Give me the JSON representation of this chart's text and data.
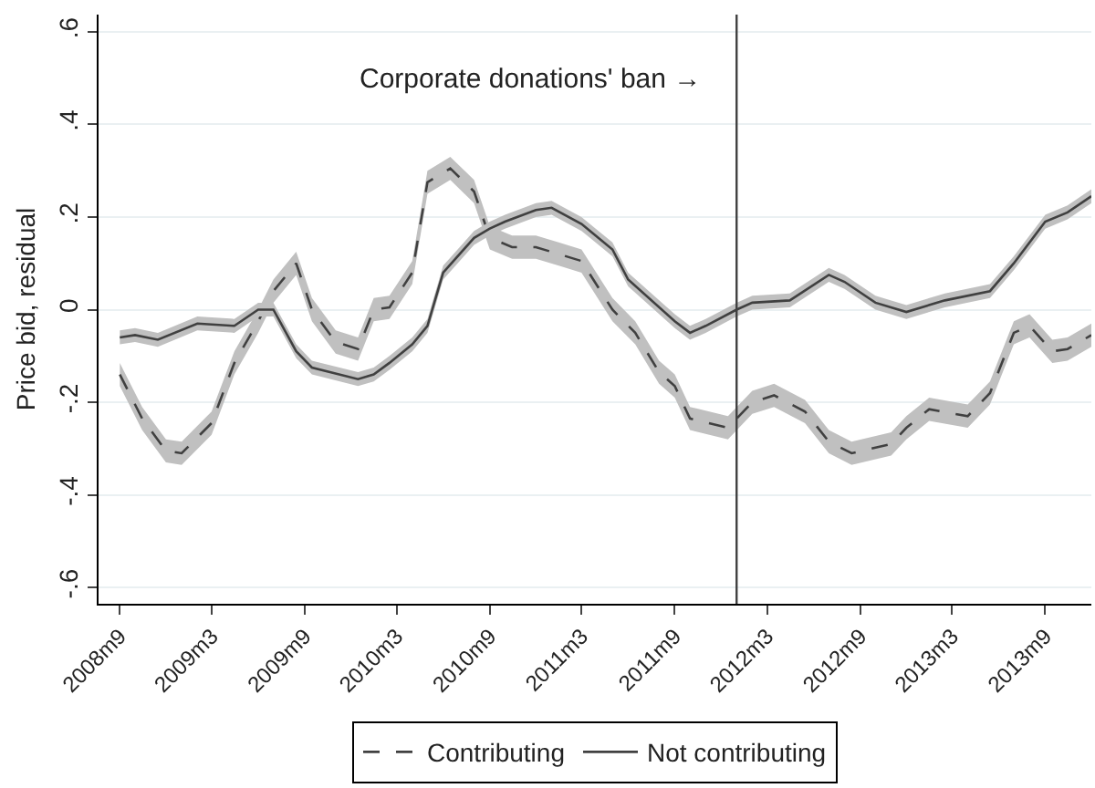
{
  "chart_data": {
    "type": "line",
    "ylabel": "Price bid, residual",
    "annotations": [
      "Corporate donations' ban →"
    ],
    "xlim": [
      "2008-07-21",
      "2013-12-01"
    ],
    "xticks": [
      {
        "value": "2008-09",
        "label": "2008m9"
      },
      {
        "value": "2009-03",
        "label": "2009m3"
      },
      {
        "value": "2009-09",
        "label": "2009m9"
      },
      {
        "value": "2010-03",
        "label": "2010m3"
      },
      {
        "value": "2010-09",
        "label": "2010m9"
      },
      {
        "value": "2011-03",
        "label": "2011m3"
      },
      {
        "value": "2011-09",
        "label": "2011m9"
      },
      {
        "value": "2012-03",
        "label": "2012m3"
      },
      {
        "value": "2012-09",
        "label": "2012m9"
      },
      {
        "value": "2013-03",
        "label": "2013m3"
      },
      {
        "value": "2013-09",
        "label": "2013m9"
      }
    ],
    "ylim": [
      -0.635,
      0.637
    ],
    "yticks": [
      {
        "value": -0.6,
        "label": "-.6"
      },
      {
        "value": -0.4,
        "label": "-.4"
      },
      {
        "value": -0.2,
        "label": "-.2"
      },
      0,
      {
        "value": 0.2,
        "label": ".2"
      },
      {
        "value": 0.4,
        "label": ".4"
      },
      {
        "value": 0.6,
        "label": ".6"
      }
    ],
    "grid": "y",
    "legend": "bottom",
    "ref_lines": [
      {
        "axis": "x",
        "value": "2012-01",
        "color": "#404040"
      }
    ],
    "series": [
      {
        "name": "Contributing",
        "color": "#404040",
        "line_style": "dashed",
        "x": [
          "2008-09",
          "2008-10-15",
          "2008-12",
          "2009-01",
          "2009-03",
          "2009-04-15",
          "2009-06",
          "2009-07",
          "2009-08-15",
          "2009-09-15",
          "2009-11",
          "2009-12-15",
          "2010-01-15",
          "2010-02-15",
          "2010-04",
          "2010-05",
          "2010-06-15",
          "2010-08",
          "2010-09",
          "2010-10-15",
          "2010-12",
          "2011-01-15",
          "2011-03",
          "2011-05",
          "2011-06-15",
          "2011-08",
          "2011-09",
          "2011-10",
          "2011-12-15",
          "2012-02",
          "2012-03-15",
          "2012-05-15",
          "2012-07",
          "2012-08-15",
          "2012-11",
          "2012-12",
          "2013-01-15",
          "2013-04",
          "2013-05-15",
          "2013-07",
          "2013-08",
          "2013-09-15",
          "2013-10-15",
          "2013-12"
        ],
        "values": [
          -0.14,
          -0.235,
          -0.305,
          -0.31,
          -0.245,
          -0.115,
          -0.025,
          0.04,
          0.1,
          0,
          -0.07,
          -0.085,
          0,
          0.005,
          0.08,
          0.275,
          0.305,
          0.255,
          0.155,
          0.135,
          0.135,
          0.12,
          0.105,
          0,
          -0.05,
          -0.135,
          -0.165,
          -0.235,
          -0.255,
          -0.2,
          -0.185,
          -0.22,
          -0.285,
          -0.31,
          -0.29,
          -0.255,
          -0.215,
          -0.23,
          -0.18,
          -0.05,
          -0.035,
          -0.09,
          -0.085,
          -0.055
        ],
        "lower": [
          -0.165,
          -0.26,
          -0.33,
          -0.335,
          -0.27,
          -0.14,
          -0.05,
          0.015,
          0.075,
          -0.025,
          -0.095,
          -0.11,
          -0.025,
          -0.02,
          0.055,
          0.25,
          0.28,
          0.23,
          0.13,
          0.11,
          0.11,
          0.095,
          0.08,
          -0.025,
          -0.075,
          -0.16,
          -0.19,
          -0.26,
          -0.28,
          -0.225,
          -0.21,
          -0.245,
          -0.31,
          -0.335,
          -0.315,
          -0.28,
          -0.24,
          -0.255,
          -0.205,
          -0.075,
          -0.06,
          -0.115,
          -0.11,
          -0.08
        ],
        "upper": [
          -0.115,
          -0.21,
          -0.28,
          -0.285,
          -0.22,
          -0.09,
          0,
          0.065,
          0.125,
          0.025,
          -0.045,
          -0.06,
          0.025,
          0.03,
          0.105,
          0.3,
          0.33,
          0.28,
          0.18,
          0.16,
          0.16,
          0.145,
          0.13,
          0.025,
          -0.025,
          -0.11,
          -0.14,
          -0.21,
          -0.23,
          -0.175,
          -0.16,
          -0.195,
          -0.26,
          -0.285,
          -0.265,
          -0.23,
          -0.19,
          -0.205,
          -0.155,
          -0.025,
          -0.01,
          -0.065,
          -0.06,
          -0.03
        ]
      },
      {
        "name": "Not contributing",
        "color": "#404040",
        "line_style": "solid",
        "x": [
          "2008-09",
          "2008-10",
          "2008-11-15",
          "2009-02",
          "2009-04-15",
          "2009-06",
          "2009-07",
          "2009-08-15",
          "2009-09-15",
          "2009-12-15",
          "2010-01-15",
          "2010-02-15",
          "2010-04",
          "2010-05",
          "2010-06",
          "2010-08",
          "2010-09",
          "2010-10",
          "2010-12",
          "2011-01",
          "2011-03",
          "2011-05",
          "2011-06",
          "2011-09",
          "2011-10",
          "2011-11",
          "2012-01",
          "2012-02",
          "2012-04-15",
          "2012-07",
          "2012-08",
          "2012-10",
          "2012-12",
          "2013-02-15",
          "2013-05-15",
          "2013-07",
          "2013-09",
          "2013-10-15",
          "2013-12"
        ],
        "values": [
          -0.06,
          -0.055,
          -0.065,
          -0.03,
          -0.035,
          0,
          0,
          -0.09,
          -0.125,
          -0.15,
          -0.14,
          -0.115,
          -0.075,
          -0.035,
          0.08,
          0.155,
          0.175,
          0.19,
          0.215,
          0.22,
          0.185,
          0.13,
          0.065,
          -0.025,
          -0.05,
          -0.035,
          0,
          0.015,
          0.02,
          0.075,
          0.06,
          0.015,
          -0.005,
          0.02,
          0.04,
          0.1,
          0.19,
          0.21,
          0.245
        ],
        "lower": [
          -0.075,
          -0.07,
          -0.08,
          -0.045,
          -0.05,
          -0.015,
          -0.015,
          -0.105,
          -0.14,
          -0.165,
          -0.155,
          -0.13,
          -0.09,
          -0.05,
          0.065,
          0.14,
          0.16,
          0.175,
          0.2,
          0.205,
          0.17,
          0.115,
          0.05,
          -0.04,
          -0.065,
          -0.05,
          -0.015,
          0,
          0.005,
          0.06,
          0.045,
          0,
          -0.02,
          0.005,
          0.025,
          0.085,
          0.175,
          0.195,
          0.23
        ],
        "upper": [
          -0.045,
          -0.04,
          -0.05,
          -0.015,
          -0.02,
          0.015,
          0.015,
          -0.075,
          -0.11,
          -0.135,
          -0.125,
          -0.1,
          -0.06,
          -0.02,
          0.095,
          0.17,
          0.19,
          0.205,
          0.23,
          0.235,
          0.2,
          0.145,
          0.08,
          -0.01,
          -0.035,
          -0.02,
          0.015,
          0.03,
          0.035,
          0.09,
          0.075,
          0.03,
          0.01,
          0.035,
          0.055,
          0.115,
          0.205,
          0.225,
          0.26
        ]
      }
    ]
  }
}
